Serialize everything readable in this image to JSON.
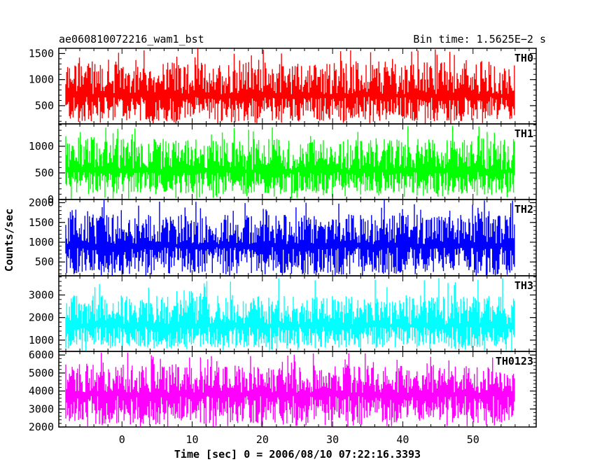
{
  "header": {
    "left": "ae060810072216_wam1_bst",
    "right": "Bin time: 1.5625E−2 s"
  },
  "chart_data": {
    "type": "line",
    "title": "ae060810072216_wam1_bst",
    "subtitle": "Bin time: 1.5625E−2 s",
    "xlabel": "Time [sec] 0 = 2006/08/10 07:22:16.3393",
    "ylabel": "Counts/sec",
    "xlim": [
      -9,
      59
    ],
    "x_ticks": [
      0,
      10,
      20,
      30,
      40,
      50
    ],
    "x_tick_labels": [
      "0",
      "10",
      "20",
      "30",
      "40",
      "50"
    ],
    "x_data_range": [
      -8,
      56
    ],
    "panels": [
      {
        "name": "TH0",
        "color": "#ff0000",
        "ylim": [
          150,
          1600
        ],
        "y_ticks": [
          500,
          1000,
          1500
        ],
        "y_tick_labels": [
          "500",
          "1000",
          "1500"
        ],
        "baseline": 720,
        "low": 200,
        "high": 1350,
        "max_spike": 1600
      },
      {
        "name": "TH1",
        "color": "#00ff00",
        "ylim": [
          0,
          1420
        ],
        "y_ticks": [
          0,
          500,
          1000
        ],
        "y_tick_labels": [
          "0",
          "500",
          "1000"
        ],
        "baseline": 560,
        "low": 100,
        "high": 1150,
        "max_spike": 1400
      },
      {
        "name": "TH2",
        "color": "#0000ff",
        "ylim": [
          150,
          2080
        ],
        "y_ticks": [
          500,
          1000,
          1500,
          2000
        ],
        "y_tick_labels": [
          "500",
          "1000",
          "1500",
          "2000"
        ],
        "baseline": 950,
        "low": 200,
        "high": 1700,
        "max_spike": 2080
      },
      {
        "name": "TH3",
        "color": "#00ffff",
        "ylim": [
          500,
          3850
        ],
        "y_ticks": [
          1000,
          2000,
          3000
        ],
        "y_tick_labels": [
          "1000",
          "2000",
          "3000"
        ],
        "baseline": 1700,
        "low": 650,
        "high": 3000,
        "max_spike": 3750
      },
      {
        "name": "TH0123",
        "color": "#ff00ff",
        "ylim": [
          2000,
          6200
        ],
        "y_ticks": [
          2000,
          3000,
          4000,
          5000,
          6000
        ],
        "y_tick_labels": [
          "2000",
          "3000",
          "4000",
          "5000",
          "6000"
        ],
        "baseline": 3900,
        "low": 2200,
        "high": 5500,
        "max_spike": 6150
      }
    ],
    "grid": false,
    "legend": "panel labels top-right"
  }
}
